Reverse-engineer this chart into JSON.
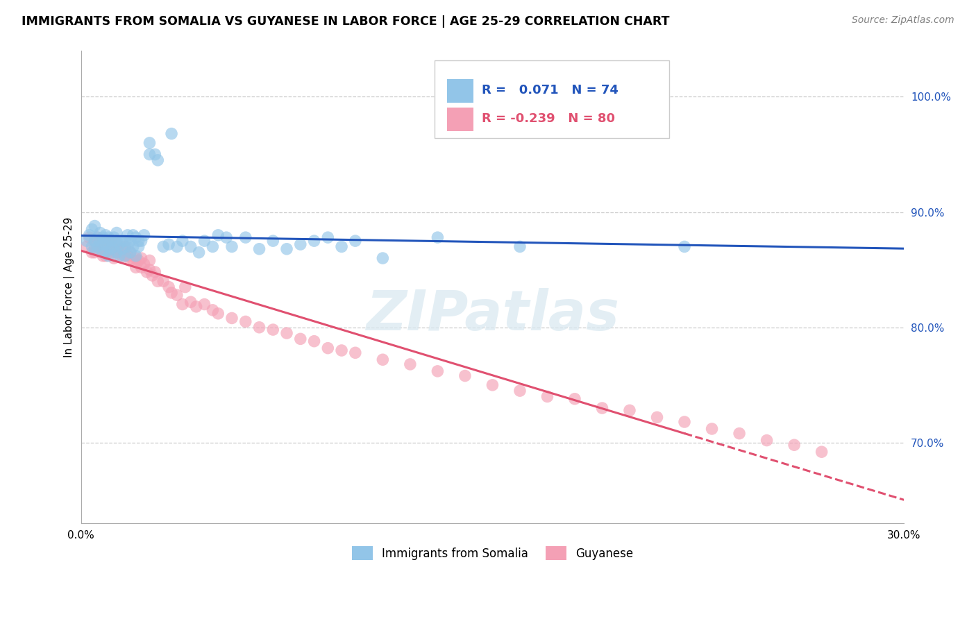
{
  "title": "IMMIGRANTS FROM SOMALIA VS GUYANESE IN LABOR FORCE | AGE 25-29 CORRELATION CHART",
  "source": "Source: ZipAtlas.com",
  "ylabel": "In Labor Force | Age 25-29",
  "x_min": 0.0,
  "x_max": 0.3,
  "y_min": 0.63,
  "y_max": 1.04,
  "y_ticks": [
    0.7,
    0.8,
    0.9,
    1.0
  ],
  "y_tick_labels": [
    "70.0%",
    "80.0%",
    "90.0%",
    "100.0%"
  ],
  "x_ticks": [
    0.0,
    0.05,
    0.1,
    0.15,
    0.2,
    0.25,
    0.3
  ],
  "x_tick_labels": [
    "0.0%",
    "",
    "",
    "",
    "",
    "",
    "30.0%"
  ],
  "watermark": "ZIPatlas",
  "color_somalia": "#92c5e8",
  "color_guyanese": "#f4a0b5",
  "color_line_somalia": "#2255bb",
  "color_line_guyanese": "#e05070",
  "guyanese_line_solid_end": 0.22,
  "somalia_x": [
    0.002,
    0.003,
    0.004,
    0.004,
    0.005,
    0.005,
    0.005,
    0.006,
    0.006,
    0.007,
    0.007,
    0.008,
    0.008,
    0.008,
    0.009,
    0.009,
    0.009,
    0.01,
    0.01,
    0.01,
    0.011,
    0.011,
    0.012,
    0.012,
    0.013,
    0.013,
    0.013,
    0.014,
    0.014,
    0.015,
    0.015,
    0.016,
    0.016,
    0.017,
    0.017,
    0.018,
    0.018,
    0.019,
    0.019,
    0.02,
    0.02,
    0.021,
    0.021,
    0.022,
    0.023,
    0.025,
    0.025,
    0.027,
    0.028,
    0.03,
    0.032,
    0.033,
    0.035,
    0.037,
    0.04,
    0.043,
    0.045,
    0.048,
    0.05,
    0.053,
    0.055,
    0.06,
    0.065,
    0.07,
    0.075,
    0.08,
    0.085,
    0.09,
    0.095,
    0.1,
    0.11,
    0.13,
    0.16,
    0.22
  ],
  "somalia_y": [
    0.875,
    0.88,
    0.87,
    0.885,
    0.875,
    0.868,
    0.888,
    0.878,
    0.87,
    0.875,
    0.882,
    0.872,
    0.878,
    0.865,
    0.872,
    0.88,
    0.865,
    0.87,
    0.878,
    0.862,
    0.875,
    0.868,
    0.87,
    0.878,
    0.865,
    0.875,
    0.882,
    0.872,
    0.862,
    0.875,
    0.868,
    0.875,
    0.862,
    0.87,
    0.88,
    0.875,
    0.865,
    0.87,
    0.88,
    0.878,
    0.862,
    0.875,
    0.87,
    0.875,
    0.88,
    0.95,
    0.96,
    0.95,
    0.945,
    0.87,
    0.872,
    0.968,
    0.87,
    0.875,
    0.87,
    0.865,
    0.875,
    0.87,
    0.88,
    0.878,
    0.87,
    0.878,
    0.868,
    0.875,
    0.868,
    0.872,
    0.875,
    0.878,
    0.87,
    0.875,
    0.86,
    0.878,
    0.87,
    0.87
  ],
  "guyanese_x": [
    0.002,
    0.003,
    0.004,
    0.005,
    0.005,
    0.006,
    0.006,
    0.007,
    0.007,
    0.008,
    0.008,
    0.009,
    0.009,
    0.01,
    0.01,
    0.011,
    0.011,
    0.012,
    0.012,
    0.013,
    0.013,
    0.014,
    0.015,
    0.015,
    0.016,
    0.016,
    0.017,
    0.018,
    0.018,
    0.019,
    0.02,
    0.02,
    0.021,
    0.022,
    0.022,
    0.023,
    0.024,
    0.025,
    0.025,
    0.026,
    0.027,
    0.028,
    0.03,
    0.032,
    0.033,
    0.035,
    0.037,
    0.038,
    0.04,
    0.042,
    0.045,
    0.048,
    0.05,
    0.055,
    0.06,
    0.065,
    0.07,
    0.075,
    0.08,
    0.085,
    0.09,
    0.095,
    0.1,
    0.11,
    0.12,
    0.13,
    0.14,
    0.15,
    0.16,
    0.17,
    0.18,
    0.19,
    0.2,
    0.21,
    0.22,
    0.23,
    0.24,
    0.25,
    0.26,
    0.27
  ],
  "guyanese_y": [
    0.87,
    0.878,
    0.865,
    0.875,
    0.865,
    0.87,
    0.878,
    0.868,
    0.875,
    0.87,
    0.862,
    0.872,
    0.862,
    0.868,
    0.875,
    0.865,
    0.872,
    0.868,
    0.86,
    0.865,
    0.872,
    0.865,
    0.862,
    0.868,
    0.862,
    0.87,
    0.862,
    0.858,
    0.865,
    0.858,
    0.86,
    0.852,
    0.858,
    0.852,
    0.86,
    0.855,
    0.848,
    0.858,
    0.85,
    0.845,
    0.848,
    0.84,
    0.84,
    0.835,
    0.83,
    0.828,
    0.82,
    0.835,
    0.822,
    0.818,
    0.82,
    0.815,
    0.812,
    0.808,
    0.805,
    0.8,
    0.798,
    0.795,
    0.79,
    0.788,
    0.782,
    0.78,
    0.778,
    0.772,
    0.768,
    0.762,
    0.758,
    0.75,
    0.745,
    0.74,
    0.738,
    0.73,
    0.728,
    0.722,
    0.718,
    0.712,
    0.708,
    0.702,
    0.698,
    0.692
  ]
}
